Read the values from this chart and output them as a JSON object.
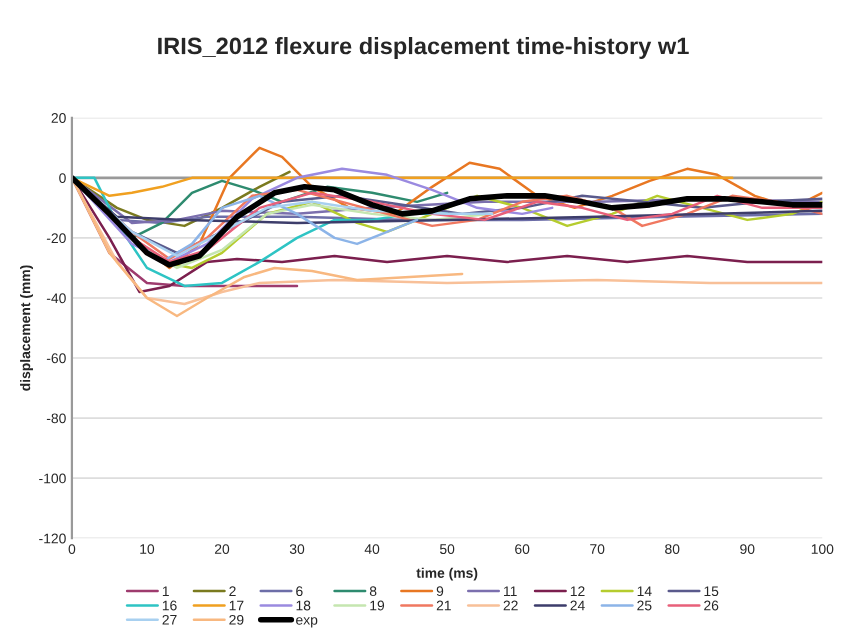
{
  "chart_data": {
    "type": "line",
    "title": "IRIS_2012 flexure displacement time-history w1",
    "xlabel": "time (ms)",
    "ylabel": "displacement (mm)",
    "xlim": [
      0,
      100
    ],
    "xticks": [
      0,
      10,
      20,
      30,
      40,
      50,
      60,
      70,
      80,
      90,
      100
    ],
    "ylim": [
      -120,
      20
    ],
    "yticks": [
      -120,
      -100,
      -80,
      -60,
      -40,
      -20,
      0,
      20
    ],
    "grid": "y",
    "legend": "bottom",
    "marker": "none",
    "line_style": "solid",
    "series": [
      {
        "name": "1",
        "color": "#9e3b6e",
        "x": [
          0,
          5,
          10,
          15,
          20,
          30
        ],
        "values": [
          0,
          -25,
          -35,
          -36,
          -36,
          -36
        ]
      },
      {
        "name": "2",
        "color": "#7a7a1f",
        "x": [
          0,
          6,
          10,
          15,
          20,
          25,
          29
        ],
        "values": [
          0,
          -10,
          -14,
          -16,
          -10,
          -3,
          2
        ]
      },
      {
        "name": "6",
        "color": "#6d6ea8",
        "x": [
          0,
          6,
          12,
          18,
          30,
          45,
          60,
          80,
          100
        ],
        "values": [
          0,
          -14,
          -15,
          -13,
          -13,
          -14,
          -14,
          -13,
          -12
        ]
      },
      {
        "name": "8",
        "color": "#2e8b6f",
        "x": [
          0,
          8,
          12,
          16,
          20,
          24,
          28,
          34,
          40,
          46,
          50
        ],
        "values": [
          0,
          -20,
          -15,
          -5,
          -1,
          -4,
          -8,
          -3,
          -5,
          -8,
          -5
        ]
      },
      {
        "name": "9",
        "color": "#e87722",
        "x": [
          0,
          8,
          13,
          17,
          21,
          25,
          28,
          32,
          37,
          43,
          48,
          53,
          57,
          62,
          67,
          72,
          77,
          82,
          86,
          91,
          96,
          100
        ],
        "values": [
          0,
          -20,
          -30,
          -22,
          0,
          10,
          7,
          -3,
          -10,
          -12,
          -3,
          5,
          3,
          -6,
          -10,
          -6,
          -1,
          3,
          1,
          -6,
          -10,
          -5
        ]
      },
      {
        "name": "11",
        "color": "#7b6fae",
        "x": [
          0,
          8,
          14,
          20,
          30,
          40,
          55,
          70,
          85,
          100
        ],
        "values": [
          0,
          -15,
          -14,
          -11,
          -12,
          -10,
          -8,
          -8,
          -7,
          -8
        ]
      },
      {
        "name": "12",
        "color": "#7b1f4e",
        "x": [
          0,
          5,
          9,
          13,
          18,
          22,
          28,
          35,
          42,
          50,
          58,
          66,
          74,
          82,
          90,
          100
        ],
        "values": [
          0,
          -20,
          -38,
          -36,
          -28,
          -27,
          -28,
          -26,
          -28,
          -26,
          -28,
          -26,
          -28,
          -26,
          -28,
          -28
        ]
      },
      {
        "name": "14",
        "color": "#b5cc2e",
        "x": [
          0,
          8,
          12,
          16,
          20,
          26,
          32,
          38,
          42,
          48,
          54,
          60,
          66,
          72,
          78,
          84,
          90,
          96,
          100
        ],
        "values": [
          0,
          -20,
          -28,
          -30,
          -25,
          -12,
          -8,
          -15,
          -18,
          -12,
          -6,
          -10,
          -16,
          -12,
          -6,
          -10,
          -14,
          -12,
          -8
        ]
      },
      {
        "name": "15",
        "color": "#5a5a8c",
        "x": [
          0,
          8,
          14,
          20,
          28,
          36,
          44,
          52,
          60,
          68,
          76,
          84,
          92,
          100
        ],
        "values": [
          0,
          -18,
          -25,
          -18,
          -8,
          -6,
          -9,
          -12,
          -10,
          -6,
          -8,
          -10,
          -8,
          -7
        ]
      },
      {
        "name": "16",
        "color": "#2ec4c4",
        "x": [
          0,
          3,
          6,
          10,
          15,
          20,
          25,
          30,
          35,
          40,
          45,
          50
        ],
        "values": [
          0,
          0,
          -15,
          -30,
          -36,
          -35,
          -28,
          -20,
          -14,
          -14,
          -12,
          -12
        ]
      },
      {
        "name": "17",
        "color": "#f0a020",
        "x": [
          0,
          5,
          8,
          12,
          16,
          30,
          60,
          88
        ],
        "values": [
          0,
          -6,
          -5,
          -3,
          0,
          0,
          0,
          0
        ]
      },
      {
        "name": "18",
        "color": "#9a8ae0",
        "x": [
          0,
          8,
          13,
          18,
          24,
          30,
          36,
          42,
          48,
          54,
          60,
          64
        ],
        "values": [
          0,
          -22,
          -28,
          -22,
          -7,
          0,
          3,
          1,
          -4,
          -10,
          -12,
          -10
        ]
      },
      {
        "name": "19",
        "color": "#c5e6b0",
        "x": [
          0,
          8,
          14,
          20,
          26,
          32,
          40,
          48,
          56
        ],
        "values": [
          0,
          -20,
          -30,
          -24,
          -12,
          -9,
          -12,
          -14,
          -12
        ]
      },
      {
        "name": "21",
        "color": "#f07860",
        "x": [
          0,
          8,
          13,
          18,
          24,
          30,
          36,
          42,
          48,
          54,
          60,
          66,
          72,
          76,
          82,
          88,
          94,
          100
        ],
        "values": [
          0,
          -18,
          -27,
          -20,
          -6,
          -4,
          -8,
          -12,
          -16,
          -14,
          -8,
          -6,
          -10,
          -16,
          -12,
          -6,
          -8,
          -12
        ]
      },
      {
        "name": "22",
        "color": "#f8c098",
        "x": [
          0,
          6,
          10,
          15,
          20,
          25,
          35,
          50,
          70,
          85,
          100
        ],
        "values": [
          0,
          -28,
          -40,
          -42,
          -38,
          -35,
          -34,
          -35,
          -34,
          -35,
          -35
        ]
      },
      {
        "name": "24",
        "color": "#3d3d6b",
        "x": [
          0,
          6,
          15,
          30,
          50,
          70,
          100
        ],
        "values": [
          0,
          -13,
          -14,
          -15,
          -14,
          -13,
          -11
        ]
      },
      {
        "name": "25",
        "color": "#8cb4e8",
        "x": [
          0,
          8,
          12,
          16,
          20,
          25,
          30,
          35,
          38,
          42,
          46
        ],
        "values": [
          0,
          -20,
          -28,
          -22,
          -10,
          -6,
          -12,
          -20,
          -22,
          -18,
          -14
        ]
      },
      {
        "name": "26",
        "color": "#e8607a",
        "x": [
          0,
          8,
          13,
          18,
          25,
          32,
          40,
          48,
          55,
          62,
          68,
          74,
          80,
          86,
          92,
          100
        ],
        "values": [
          0,
          -20,
          -28,
          -24,
          -10,
          -5,
          -8,
          -12,
          -14,
          -8,
          -10,
          -14,
          -12,
          -6,
          -10,
          -10
        ]
      },
      {
        "name": "27",
        "color": "#a8d0f0",
        "x": [
          0,
          8,
          14,
          20,
          26,
          32,
          40,
          50,
          56
        ],
        "values": [
          0,
          -18,
          -26,
          -18,
          -10,
          -8,
          -11,
          -12,
          -12
        ]
      },
      {
        "name": "29",
        "color": "#f8b880",
        "x": [
          0,
          5,
          10,
          14,
          18,
          23,
          27,
          32,
          38,
          45,
          52
        ],
        "values": [
          0,
          -25,
          -40,
          -46,
          -40,
          -33,
          -30,
          -31,
          -34,
          -33,
          -32
        ]
      },
      {
        "name": "exp",
        "color": "#000000",
        "x": [
          0,
          5,
          10,
          13,
          17,
          22,
          27,
          31,
          35,
          40,
          44,
          48,
          53,
          58,
          63,
          68,
          72,
          77,
          82,
          87,
          92,
          96,
          100
        ],
        "values": [
          0,
          -12,
          -25,
          -29,
          -26,
          -13,
          -5,
          -3,
          -4,
          -9,
          -12,
          -11,
          -7,
          -6,
          -6,
          -8,
          -10,
          -9,
          -7,
          -7,
          -8,
          -9,
          -9
        ]
      }
    ]
  }
}
